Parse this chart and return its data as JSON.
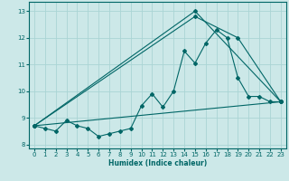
{
  "xlabel": "Humidex (Indice chaleur)",
  "bg_color": "#cce8e8",
  "grid_color": "#aad4d4",
  "line_color": "#006666",
  "xlim": [
    -0.5,
    23.5
  ],
  "ylim": [
    7.85,
    13.35
  ],
  "xticks": [
    0,
    1,
    2,
    3,
    4,
    5,
    6,
    7,
    8,
    9,
    10,
    11,
    12,
    13,
    14,
    15,
    16,
    17,
    18,
    19,
    20,
    21,
    22,
    23
  ],
  "yticks": [
    8,
    9,
    10,
    11,
    12,
    13
  ],
  "series1_x": [
    0,
    1,
    2,
    3,
    4,
    5,
    6,
    7,
    8,
    9,
    10,
    11,
    12,
    13,
    14,
    15,
    16,
    17,
    18,
    19,
    20,
    21,
    22,
    23
  ],
  "series1_y": [
    8.7,
    8.6,
    8.5,
    8.9,
    8.7,
    8.6,
    8.3,
    8.4,
    8.5,
    8.6,
    9.45,
    9.9,
    9.4,
    10.0,
    11.5,
    11.05,
    11.8,
    12.3,
    12.0,
    10.5,
    9.8,
    9.8,
    9.6,
    9.6
  ],
  "trend1_x": [
    0,
    23
  ],
  "trend1_y": [
    8.7,
    9.6
  ],
  "trend2_x": [
    0,
    15,
    23
  ],
  "trend2_y": [
    8.7,
    13.0,
    9.6
  ],
  "trend3_x": [
    0,
    15,
    19,
    23
  ],
  "trend3_y": [
    8.7,
    12.8,
    12.0,
    9.6
  ]
}
